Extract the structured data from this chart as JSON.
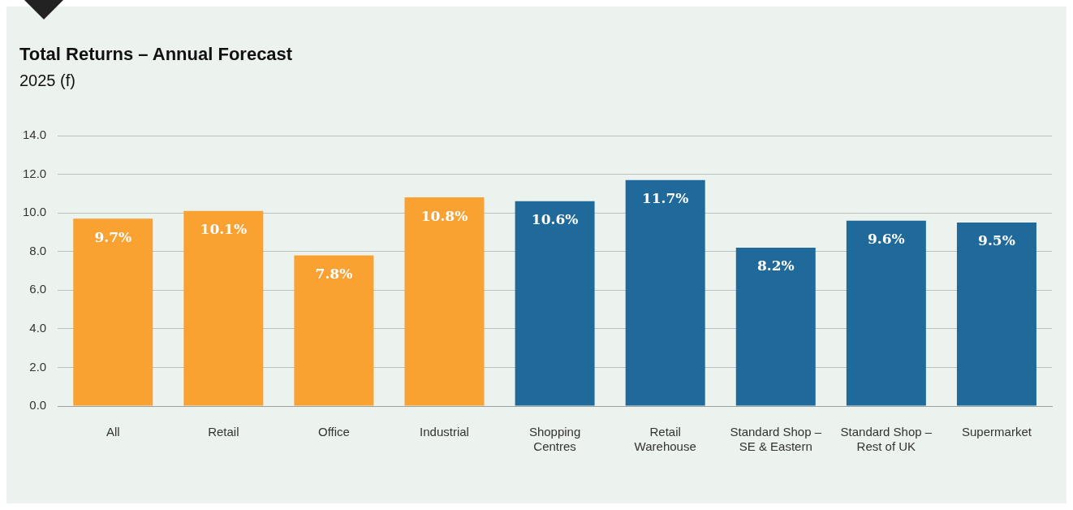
{
  "chart_data": {
    "type": "bar",
    "title": "Total Returns – Annual Forecast",
    "subtitle": "2025 (f)",
    "categories": [
      "All",
      "Retail",
      "Office",
      "Industrial",
      "Shopping Centres",
      "Retail Warehouse",
      "Standard Shop – SE & Eastern",
      "Standard Shop – Rest of UK",
      "Supermarket"
    ],
    "values": [
      9.7,
      10.1,
      7.8,
      10.8,
      10.6,
      11.7,
      8.2,
      9.6,
      9.5
    ],
    "colors": [
      "#f9a131",
      "#f9a131",
      "#f9a131",
      "#f9a131",
      "#1f6a9a",
      "#1f6a9a",
      "#1f6a9a",
      "#1f6a9a",
      "#1f6a9a"
    ],
    "value_labels": [
      "9.7%",
      "10.1%",
      "7.8%",
      "10.8%",
      "10.6%",
      "11.7%",
      "8.2%",
      "9.6%",
      "9.5%"
    ],
    "ylim": [
      0,
      14
    ],
    "yticks": [
      {
        "value": 0,
        "label": "0.0"
      },
      {
        "value": 2,
        "label": "2.0"
      },
      {
        "value": 4,
        "label": "4.0"
      },
      {
        "value": 6,
        "label": "6.0"
      },
      {
        "value": 8,
        "label": "8.0"
      },
      {
        "value": 10,
        "label": "10.0"
      },
      {
        "value": 12,
        "label": "12.0"
      },
      {
        "value": 14,
        "label": "14.0"
      }
    ],
    "grid": "y",
    "legend": false
  }
}
